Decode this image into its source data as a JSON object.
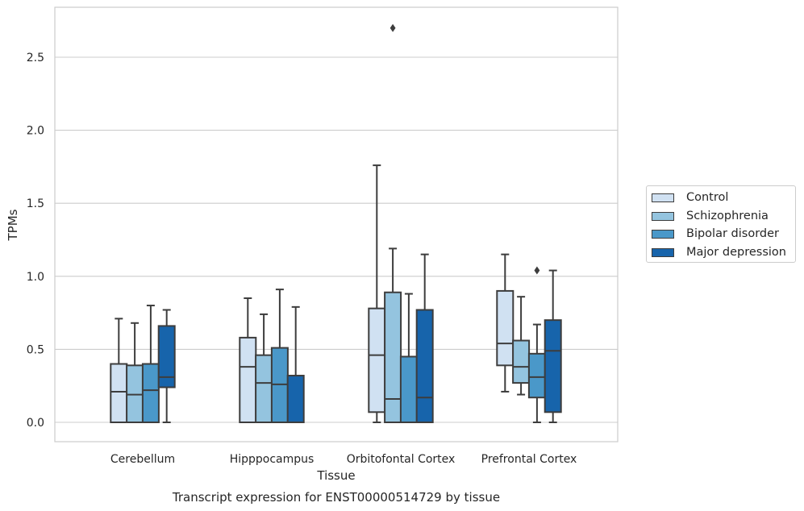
{
  "chart_data": {
    "type": "box",
    "title": "",
    "caption": "Transcript expression for ENST00000514729 by tissue",
    "xlabel": "Tissue",
    "ylabel": "TPMs",
    "ylim": [
      -0.13,
      2.85
    ],
    "yticks": [
      "0.0",
      "0.5",
      "1.0",
      "1.5",
      "2.0",
      "2.5"
    ],
    "ytick_values": [
      0,
      0.5,
      1.0,
      1.5,
      2.0,
      2.5
    ],
    "grid": "horizontal",
    "legend_position": "right",
    "categories": [
      "Cerebellum",
      "Hipppocampus",
      "Orbitofontal Cortex",
      "Prefrontal Cortex"
    ],
    "series": [
      {
        "name": "Control",
        "color": "#d0e1f2",
        "boxes": [
          {
            "whislo": 0.0,
            "q1": 0.0,
            "med": 0.21,
            "q3": 0.4,
            "whishi": 0.71,
            "fliers": []
          },
          {
            "whislo": 0.0,
            "q1": 0.0,
            "med": 0.38,
            "q3": 0.58,
            "whishi": 0.85,
            "fliers": []
          },
          {
            "whislo": 0.0,
            "q1": 0.07,
            "med": 0.46,
            "q3": 0.78,
            "whishi": 1.76,
            "fliers": []
          },
          {
            "whislo": 0.21,
            "q1": 0.39,
            "med": 0.54,
            "q3": 0.9,
            "whishi": 1.15,
            "fliers": []
          }
        ]
      },
      {
        "name": "Schizophrenia",
        "color": "#94c4df",
        "boxes": [
          {
            "whislo": 0.0,
            "q1": 0.0,
            "med": 0.19,
            "q3": 0.39,
            "whishi": 0.68,
            "fliers": []
          },
          {
            "whislo": 0.0,
            "q1": 0.0,
            "med": 0.27,
            "q3": 0.46,
            "whishi": 0.74,
            "fliers": []
          },
          {
            "whislo": 0.0,
            "q1": 0.0,
            "med": 0.16,
            "q3": 0.89,
            "whishi": 1.19,
            "fliers": [
              2.7
            ]
          },
          {
            "whislo": 0.19,
            "q1": 0.27,
            "med": 0.38,
            "q3": 0.56,
            "whishi": 0.86,
            "fliers": []
          }
        ]
      },
      {
        "name": "Bipolar disorder",
        "color": "#4a98c9",
        "boxes": [
          {
            "whislo": 0.0,
            "q1": 0.0,
            "med": 0.22,
            "q3": 0.4,
            "whishi": 0.8,
            "fliers": []
          },
          {
            "whislo": 0.0,
            "q1": 0.0,
            "med": 0.26,
            "q3": 0.51,
            "whishi": 0.91,
            "fliers": []
          },
          {
            "whislo": 0.0,
            "q1": 0.0,
            "med": 0.0,
            "q3": 0.45,
            "whishi": 0.88,
            "fliers": []
          },
          {
            "whislo": 0.0,
            "q1": 0.17,
            "med": 0.31,
            "q3": 0.47,
            "whishi": 0.67,
            "fliers": [
              1.04
            ]
          }
        ]
      },
      {
        "name": "Major depression",
        "color": "#1764ab",
        "boxes": [
          {
            "whislo": 0.0,
            "q1": 0.24,
            "med": 0.31,
            "q3": 0.66,
            "whishi": 0.77,
            "fliers": []
          },
          {
            "whislo": 0.0,
            "q1": 0.0,
            "med": 0.0,
            "q3": 0.32,
            "whishi": 0.79,
            "fliers": []
          },
          {
            "whislo": 0.0,
            "q1": 0.0,
            "med": 0.17,
            "q3": 0.77,
            "whishi": 1.15,
            "fliers": []
          },
          {
            "whislo": 0.0,
            "q1": 0.07,
            "med": 0.49,
            "q3": 0.7,
            "whishi": 1.04,
            "fliers": []
          }
        ]
      }
    ]
  }
}
